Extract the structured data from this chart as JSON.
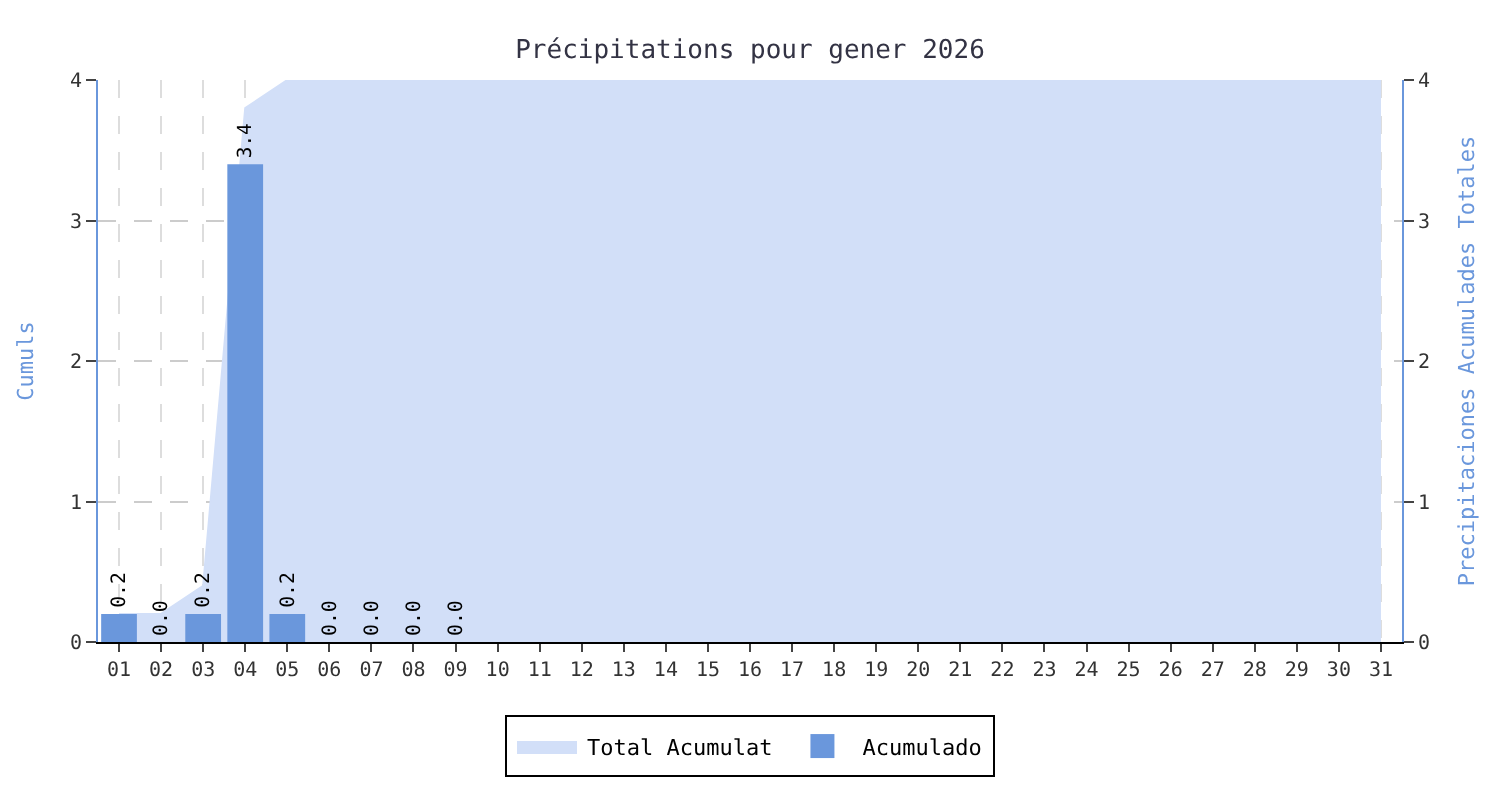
{
  "chart_data": {
    "type": "bar",
    "title": "Précipitations pour gener 2026",
    "ylabel": "Cumuls",
    "y2label": "Precipitaciones Acumulades Totales",
    "categories": [
      "01",
      "02",
      "03",
      "04",
      "05",
      "06",
      "07",
      "08",
      "09",
      "10",
      "11",
      "12",
      "13",
      "14",
      "15",
      "16",
      "17",
      "18",
      "19",
      "20",
      "21",
      "22",
      "23",
      "24",
      "25",
      "26",
      "27",
      "28",
      "29",
      "30",
      "31"
    ],
    "series": [
      {
        "name": "Total Acumulat",
        "type": "area",
        "axis": "y2",
        "color": "#d2dff8",
        "values": [
          0.2,
          0.2,
          0.4,
          3.8,
          4.0,
          4.0,
          4.0,
          4.0,
          4.0,
          4.0,
          4.0,
          4.0,
          4.0,
          4.0,
          4.0,
          4.0,
          4.0,
          4.0,
          4.0,
          4.0,
          4.0,
          4.0,
          4.0,
          4.0,
          4.0,
          4.0,
          4.0,
          4.0,
          4.0,
          4.0,
          4.0
        ]
      },
      {
        "name": "Acumulado",
        "color": "#6a97dc",
        "values": [
          0.2,
          0.0,
          0.2,
          3.4,
          0.2,
          0.0,
          0.0,
          0.0,
          0.0,
          null,
          null,
          null,
          null,
          null,
          null,
          null,
          null,
          null,
          null,
          null,
          null,
          null,
          null,
          null,
          null,
          null,
          null,
          null,
          null,
          null,
          null
        ],
        "value_labels": [
          "0.2",
          "0.0",
          "0.2",
          "3.4",
          "0.2",
          "0.0",
          "0.0",
          "0.0",
          "0.0",
          null,
          null,
          null,
          null,
          null,
          null,
          null,
          null,
          null,
          null,
          null,
          null,
          null,
          null,
          null,
          null,
          null,
          null,
          null,
          null,
          null,
          null
        ]
      }
    ],
    "ylim": [
      0,
      4
    ],
    "yticks": [
      0,
      1,
      2,
      3,
      4
    ],
    "y2lim": [
      0,
      4
    ],
    "y2ticks": [
      0,
      1,
      2,
      3,
      4
    ],
    "grid": true,
    "legend": "bottom"
  }
}
